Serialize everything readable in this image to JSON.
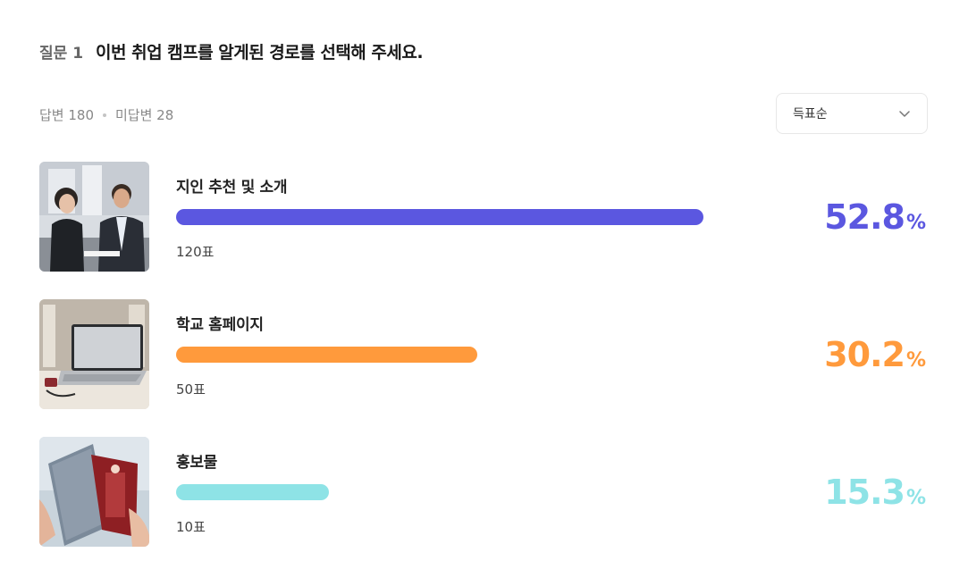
{
  "question": {
    "label": "질문 1",
    "text": "이번 취업 캠프를 알게된 경로를 선택해 주세요."
  },
  "stats": {
    "answered": "답변 180",
    "unanswered": "미답변 28"
  },
  "sort": {
    "selected": "득표순",
    "icon": "chevron-down-icon"
  },
  "options": [
    {
      "label": "지인 추천 및 소개",
      "votes": "120표",
      "percent": "52.8",
      "percent_sign": "%",
      "share": 0.528,
      "color": "#5b57e0",
      "image": "business-meeting-photo"
    },
    {
      "label": "학교 홈페이지",
      "votes": "50표",
      "percent": "30.2",
      "percent_sign": "%",
      "share": 0.302,
      "color": "#ff9a3c",
      "image": "laptop-on-desk-photo"
    },
    {
      "label": "홍보물",
      "votes": "10표",
      "percent": "15.3",
      "percent_sign": "%",
      "share": 0.153,
      "color": "#8ee3e6",
      "image": "brochure-photo"
    }
  ]
}
